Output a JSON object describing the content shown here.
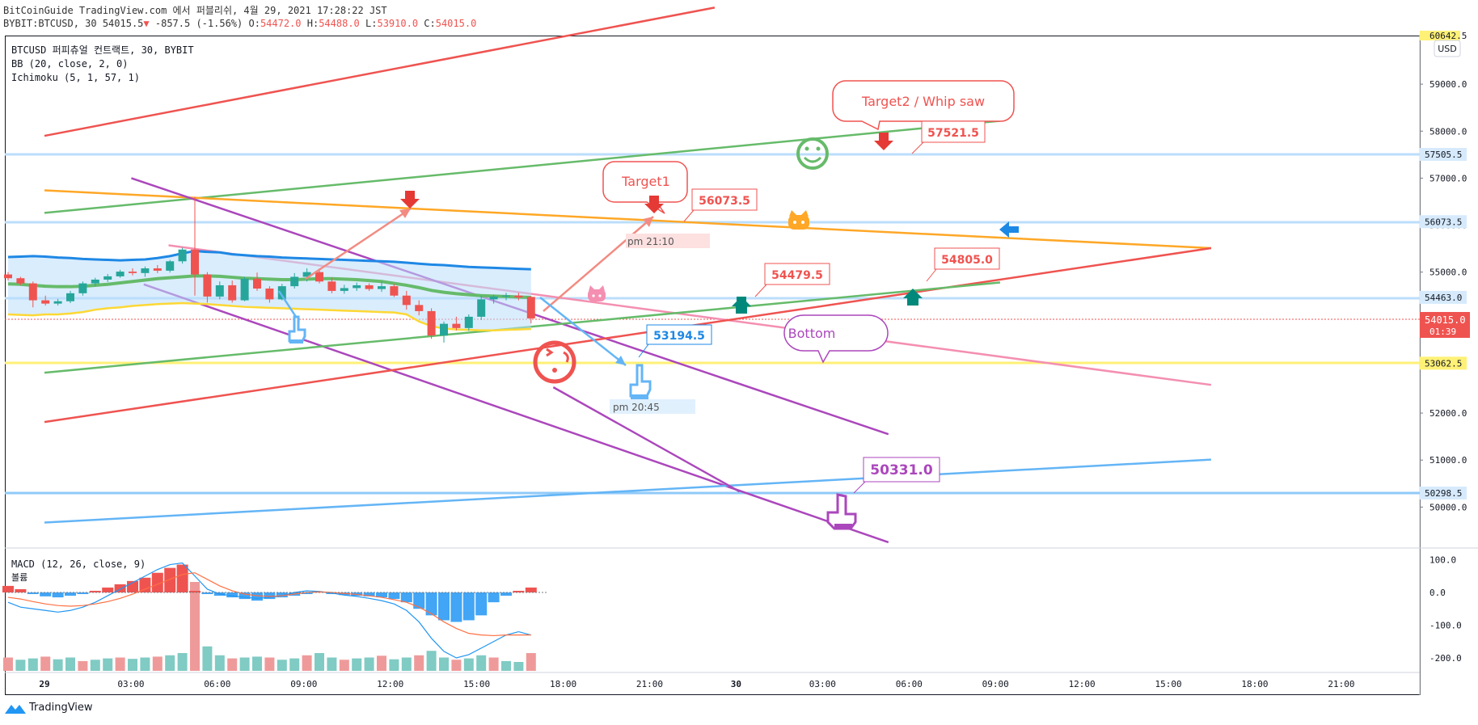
{
  "header": {
    "publisher": "BitCoinGuide TradingView.com 에서 퍼블리쉬, 4월 29, 2021 17:28:22 JST",
    "ticker": "BYBIT:BTCUSD, 30",
    "price": "54015.5",
    "change": "-857.5 (-1.56%)",
    "o_label": "O:",
    "o_value": "54472.0",
    "h_label": "H:",
    "h_value": "54488.0",
    "l_label": "L:",
    "l_value": "53910.0",
    "c_label": "C:",
    "c_value": "54015.0"
  },
  "legend": {
    "symbol": "BTCUSD 퍼피츄얼 컨트랙트, 30, BYBIT",
    "bb": "BB (20, close, 2, 0)",
    "ichimoku": "Ichimoku (5, 1, 57, 1)",
    "macd": "MACD (12, 26, close, 9)",
    "macd_sub": "볼륨"
  },
  "axis": {
    "currency": "USD",
    "top_cut_label": "60642.5",
    "current_price": "54015.0",
    "countdown": "01:39"
  },
  "colors": {
    "up": "#26a69a",
    "down": "#ef5350",
    "accent_blue": "#2196f3",
    "purple": "#ab47bc",
    "green": "#66bb6a",
    "orange": "#ffa726",
    "red_line": "#ef5350",
    "yellow": "#fdd835",
    "pink": "#f48fb1"
  },
  "annotations": {
    "target1": "Target1",
    "target2": "Target2 / Whip saw",
    "bottom": "Bottom",
    "p56073": "56073.5",
    "p57521": "57521.5",
    "p54479": "54479.5",
    "p54805": "54805.0",
    "p53194": "53194.5",
    "p50331": "50331.0",
    "time1": "pm 21:10",
    "time2": "pm 20:45"
  },
  "footer": {
    "brand": "TradingView",
    "logo_icon": "tradingview-logo-icon"
  },
  "chart_data": [
    {
      "type": "candlestick",
      "title": "BTCUSD 퍼피츄얼 컨트랙트, 30, BYBIT",
      "ylim": [
        49400,
        60600
      ],
      "xlabel": "",
      "ylabel": "USD",
      "x_ticks": [
        "29",
        "03:00",
        "06:00",
        "09:00",
        "12:00",
        "15:00",
        "18:00",
        "21:00",
        "30",
        "03:00",
        "06:00",
        "09:00",
        "12:00",
        "15:00",
        "18:00",
        "21:00"
      ],
      "y_ticks": [
        50000,
        51000,
        52000,
        53000,
        54000,
        55000,
        56000,
        57000,
        58000,
        59000
      ],
      "price_labels": [
        {
          "value": 57505.5,
          "text": "57505.5",
          "kind": "line"
        },
        {
          "value": 56073.5,
          "text": "56073.5",
          "kind": "line"
        },
        {
          "value": 54463.0,
          "text": "54463.0",
          "kind": "line"
        },
        {
          "value": 53062.5,
          "text": "53062.5",
          "kind": "yellow"
        },
        {
          "value": 50298.5,
          "text": "50298.5",
          "kind": "line"
        }
      ],
      "candles": [
        [
          54950,
          55000,
          54820,
          54870
        ],
        [
          54870,
          54900,
          54720,
          54760
        ],
        [
          54760,
          54800,
          54250,
          54400
        ],
        [
          54400,
          54500,
          54290,
          54330
        ],
        [
          54330,
          54430,
          54290,
          54380
        ],
        [
          54380,
          54600,
          54340,
          54550
        ],
        [
          54550,
          54800,
          54500,
          54760
        ],
        [
          54760,
          54880,
          54700,
          54840
        ],
        [
          54840,
          54960,
          54790,
          54910
        ],
        [
          54910,
          55050,
          54880,
          55010
        ],
        [
          55010,
          55080,
          54930,
          54980
        ],
        [
          54980,
          55120,
          54900,
          55080
        ],
        [
          55080,
          55150,
          54980,
          55030
        ],
        [
          55030,
          55260,
          54990,
          55230
        ],
        [
          55230,
          55520,
          55180,
          55480
        ],
        [
          55480,
          56600,
          54500,
          54950
        ],
        [
          54950,
          55000,
          54350,
          54480
        ],
        [
          54480,
          54800,
          54420,
          54720
        ],
        [
          54720,
          54820,
          54350,
          54400
        ],
        [
          54400,
          54900,
          54380,
          54860
        ],
        [
          54860,
          54990,
          54600,
          54650
        ],
        [
          54650,
          54700,
          54350,
          54420
        ],
        [
          54420,
          54750,
          54400,
          54700
        ],
        [
          54700,
          54980,
          54650,
          54900
        ],
        [
          54900,
          55080,
          54800,
          55000
        ],
        [
          55000,
          55080,
          54760,
          54800
        ],
        [
          54800,
          54880,
          54550,
          54600
        ],
        [
          54600,
          54730,
          54540,
          54660
        ],
        [
          54660,
          54780,
          54600,
          54720
        ],
        [
          54720,
          54760,
          54600,
          54640
        ],
        [
          54640,
          54800,
          54580,
          54700
        ],
        [
          54700,
          54750,
          54470,
          54500
        ],
        [
          54500,
          54600,
          54200,
          54300
        ],
        [
          54300,
          54400,
          54080,
          54170
        ],
        [
          54170,
          54230,
          53580,
          53650
        ],
        [
          53650,
          53950,
          53500,
          53900
        ],
        [
          53900,
          54050,
          53760,
          53810
        ],
        [
          53810,
          54100,
          53750,
          54050
        ],
        [
          54050,
          54500,
          53980,
          54420
        ],
        [
          54420,
          54520,
          54330,
          54480
        ],
        [
          54480,
          54560,
          54400,
          54500
        ],
        [
          54500,
          54560,
          54400,
          54460
        ],
        [
          54472,
          54488,
          53910,
          54015
        ]
      ],
      "bb_upper": [
        55320,
        55330,
        55340,
        55330,
        55310,
        55300,
        55280,
        55270,
        55260,
        55250,
        55260,
        55270,
        55300,
        55340,
        55400,
        55450,
        55430,
        55420,
        55380,
        55360,
        55340,
        55330,
        55310,
        55300,
        55290,
        55280,
        55270,
        55260,
        55250,
        55240,
        55230,
        55220,
        55200,
        55180,
        55160,
        55150,
        55130,
        55110,
        55100,
        55090,
        55080,
        55070,
        55060
      ],
      "bb_basis": [
        54750,
        54740,
        54720,
        54700,
        54690,
        54690,
        54700,
        54720,
        54740,
        54770,
        54800,
        54830,
        54860,
        54880,
        54900,
        54920,
        54920,
        54910,
        54890,
        54870,
        54860,
        54850,
        54840,
        54840,
        54850,
        54860,
        54860,
        54850,
        54840,
        54820,
        54800,
        54760,
        54720,
        54670,
        54610,
        54570,
        54540,
        54520,
        54500,
        54490,
        54480,
        54470,
        54460
      ],
      "cloud_line": [
        54100,
        54090,
        54080,
        54100,
        54100,
        54120,
        54150,
        54200,
        54230,
        54250,
        54280,
        54300,
        54320,
        54330,
        54340,
        54330,
        54320,
        54300,
        54280,
        54260,
        54250,
        54240,
        54230,
        54220,
        54210,
        54200,
        54190,
        54180,
        54170,
        54160,
        54150,
        54140,
        54100,
        53950,
        53850,
        53800,
        53780,
        53770,
        53760,
        53760,
        53770,
        53780,
        53790
      ],
      "trendlines": [
        {
          "name": "",
          "color": "#ef5350",
          "points": [
            [
              "29 00:00",
              57900
            ],
            [
              "30 03:00",
              60630
            ]
          ]
        },
        {
          "name": "",
          "color": "#66bb6a",
          "points": [
            [
              "29 00:00",
              56260
            ],
            [
              "30 14:30",
              58220
            ]
          ]
        },
        {
          "name": "",
          "color": "#ffa726",
          "points": [
            [
              "29 00:00",
              56740
            ],
            [
              "30 23:00",
              55510
            ]
          ]
        },
        {
          "name": "",
          "color": "#f48fb1",
          "points": [
            [
              "29 05:00",
              55570
            ],
            [
              "30 23:00",
              52600
            ]
          ]
        },
        {
          "name": "",
          "color": "#ab47bc",
          "points": [
            [
              "29 03:30",
              57000
            ],
            [
              "30 10:00",
              51550
            ]
          ]
        },
        {
          "name": "",
          "color": "#ab47bc",
          "points": [
            [
              "29 04:00",
              54740
            ],
            [
              "30 10:00",
              49250
            ]
          ]
        },
        {
          "name": "",
          "color": "#ef5350",
          "points": [
            [
              "29 00:00",
              51810
            ],
            [
              "30 23:00",
              55510
            ]
          ]
        },
        {
          "name": "",
          "color": "#66bb6a",
          "points": [
            [
              "29 00:00",
              52860
            ],
            [
              "30 14:30",
              54780
            ]
          ]
        },
        {
          "name": "",
          "color": "#64b5f6",
          "points": [
            [
              "29 00:00",
              49670
            ],
            [
              "30 23:00",
              51010
            ]
          ]
        },
        {
          "name": "",
          "color": "#ab47bc",
          "points": [
            [
              "29 20:30",
              52550
            ],
            [
              "30 04:00",
              50330
            ]
          ]
        }
      ]
    },
    {
      "type": "bar",
      "title": "MACD (12, 26, close, 9)",
      "ylim": [
        -250,
        120
      ],
      "y_ticks": [
        -200,
        -100,
        0,
        100
      ],
      "y_tick_labels": [
        "-200.0",
        "-100.0",
        "0.0",
        "100.0"
      ],
      "histogram": [
        20,
        10,
        -5,
        -12,
        -15,
        -10,
        -5,
        5,
        15,
        25,
        35,
        45,
        60,
        75,
        85,
        5,
        -5,
        -10,
        -15,
        -20,
        -25,
        -20,
        -15,
        -10,
        -5,
        2,
        -5,
        -8,
        -10,
        -12,
        -15,
        -20,
        -30,
        -50,
        -70,
        -85,
        -90,
        -85,
        -70,
        -30,
        -10,
        5,
        15
      ],
      "macd_line": [
        -30,
        -45,
        -50,
        -55,
        -60,
        -55,
        -45,
        -30,
        -10,
        10,
        30,
        50,
        70,
        85,
        90,
        50,
        10,
        -5,
        -10,
        -15,
        -18,
        -15,
        -10,
        0,
        5,
        3,
        -2,
        -8,
        -12,
        -18,
        -25,
        -35,
        -55,
        -90,
        -140,
        -180,
        -200,
        -190,
        -170,
        -150,
        -130,
        -120,
        -130
      ],
      "signal_line": [
        -15,
        -20,
        -28,
        -35,
        -40,
        -42,
        -40,
        -35,
        -28,
        -18,
        -5,
        10,
        25,
        40,
        55,
        60,
        40,
        20,
        5,
        -5,
        -10,
        -12,
        -10,
        -5,
        0,
        2,
        0,
        -3,
        -6,
        -10,
        -15,
        -22,
        -30,
        -45,
        -65,
        -90,
        -110,
        -125,
        -130,
        -132,
        -130,
        -130,
        -130
      ],
      "volume": [
        30,
        25,
        28,
        32,
        26,
        30,
        22,
        25,
        28,
        30,
        27,
        30,
        32,
        35,
        40,
        200,
        55,
        35,
        28,
        30,
        32,
        30,
        25,
        28,
        35,
        40,
        30,
        25,
        28,
        30,
        34,
        26,
        30,
        35,
        45,
        30,
        25,
        28,
        35,
        30,
        22,
        20,
        40
      ]
    }
  ]
}
